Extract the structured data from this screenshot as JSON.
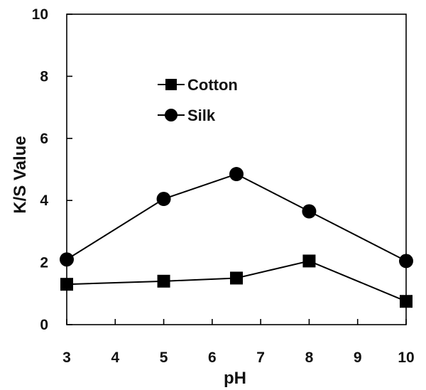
{
  "chart_data": {
    "type": "line",
    "title": "",
    "xlabel": "pH",
    "ylabel": "K/S  Value",
    "xlim": [
      3,
      10
    ],
    "ylim": [
      0,
      10
    ],
    "xticks": [
      3,
      4,
      5,
      6,
      7,
      8,
      9,
      10
    ],
    "yticks": [
      0,
      2,
      4,
      6,
      8,
      10
    ],
    "grid": false,
    "legend_position": "upper-left-inside",
    "series": [
      {
        "name": "Cotton",
        "marker": "square",
        "color": "#000000",
        "x": [
          3,
          5,
          6.5,
          8,
          10
        ],
        "y": [
          1.3,
          1.4,
          1.5,
          2.05,
          0.75
        ]
      },
      {
        "name": "Silk",
        "marker": "circle",
        "color": "#000000",
        "x": [
          3,
          5,
          6.5,
          8,
          10
        ],
        "y": [
          2.1,
          4.05,
          4.85,
          3.65,
          2.05
        ]
      }
    ]
  }
}
